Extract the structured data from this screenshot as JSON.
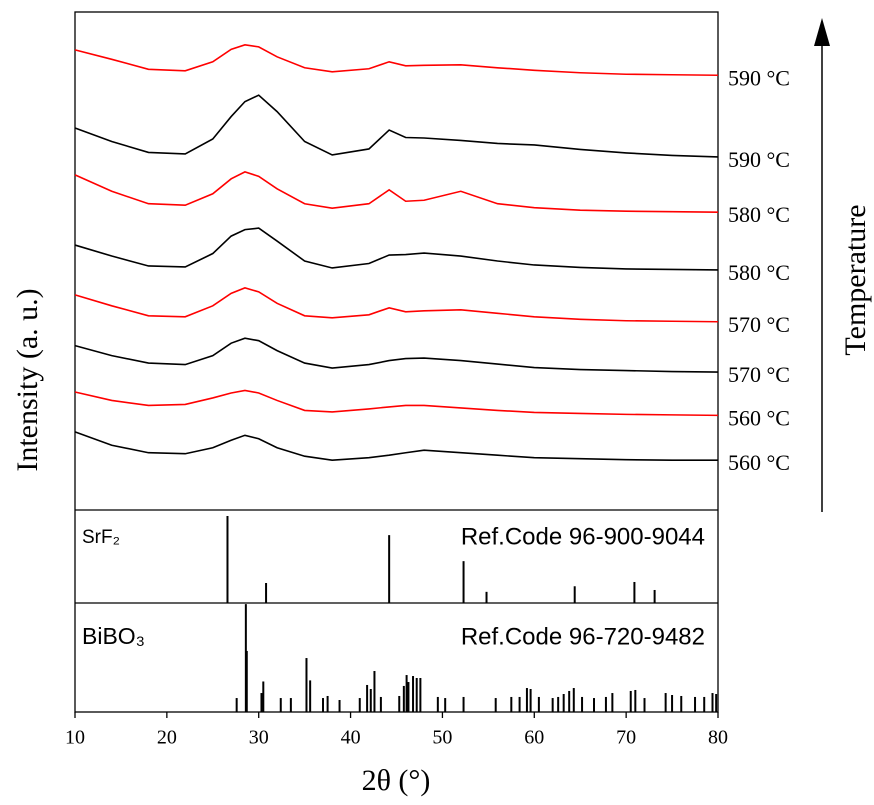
{
  "chart_data": [
    {
      "type": "line",
      "y_label": "Intensity (a. u.)",
      "annotation": "Temperature",
      "xlim": [
        10,
        80
      ],
      "ylim": [
        0,
        100
      ],
      "x": [
        10,
        14,
        18,
        22,
        25,
        27,
        28.5,
        30,
        32,
        35,
        38,
        42,
        44.2,
        46,
        48,
        52,
        56,
        60,
        65,
        70,
        75,
        80
      ],
      "series": [
        {
          "name": "560 °C",
          "color": "#000000",
          "values": [
            15.7,
            13,
            11.5,
            11.3,
            12.5,
            14,
            15,
            14.3,
            12.5,
            10.8,
            10,
            10.5,
            11,
            11.5,
            12,
            11.5,
            11,
            10.5,
            10.3,
            10.1,
            10,
            10
          ]
        },
        {
          "name": "560 °C",
          "color": "#ff0000",
          "values": [
            23.7,
            22,
            21,
            21.2,
            22.5,
            23.5,
            24,
            23.5,
            22,
            20,
            19.7,
            20.3,
            20.7,
            21,
            21,
            20.5,
            20,
            19.6,
            19.4,
            19.2,
            19.1,
            19
          ]
        },
        {
          "name": "570 °C",
          "color": "#000000",
          "values": [
            33,
            31,
            29.5,
            29.2,
            31,
            33.5,
            34.5,
            34,
            32,
            29.5,
            28.5,
            29.2,
            30,
            30.4,
            30.5,
            30,
            29.3,
            28.6,
            28.2,
            28,
            27.8,
            27.7
          ]
        },
        {
          "name": "570 °C",
          "color": "#ff0000",
          "values": [
            43.2,
            41,
            39,
            38.8,
            41,
            43.5,
            44.6,
            43.8,
            41.5,
            39,
            38.6,
            39.2,
            40.6,
            39.8,
            40,
            40.2,
            39.5,
            38.8,
            38.3,
            38,
            37.9,
            37.8
          ]
        },
        {
          "name": "580 °C",
          "color": "#000000",
          "values": [
            53.2,
            51,
            49,
            48.8,
            51.5,
            55,
            56.3,
            56.6,
            54,
            50,
            48.6,
            49.5,
            51.2,
            51.3,
            51.6,
            51,
            50,
            49.2,
            48.7,
            48.4,
            48.3,
            48.2
          ]
        },
        {
          "name": "580 °C",
          "color": "#ff0000",
          "values": [
            67.3,
            64,
            61.5,
            61.2,
            63.5,
            66.5,
            67.9,
            67,
            64.5,
            61.5,
            60.6,
            61.5,
            64.3,
            62,
            62.2,
            64,
            61.5,
            60.7,
            60.2,
            60,
            59.9,
            59.8
          ]
        },
        {
          "name": "590 °C",
          "color": "#000000",
          "values": [
            76.7,
            74,
            71.8,
            71.5,
            74.5,
            79,
            82,
            83.3,
            80,
            74,
            71.3,
            72.5,
            76.3,
            74.8,
            74.7,
            74.2,
            73.6,
            73.3,
            72.4,
            71.7,
            71.2,
            70.9
          ]
        },
        {
          "name": "590 °C",
          "color": "#ff0000",
          "values": [
            92.4,
            90.5,
            88.5,
            88.2,
            90,
            92.5,
            93.4,
            93,
            91,
            88.8,
            88,
            88.6,
            90,
            89.2,
            89.3,
            89.4,
            88.8,
            88.3,
            87.8,
            87.5,
            87.4,
            87.3
          ]
        }
      ]
    },
    {
      "type": "stem",
      "label": "SrF₂",
      "ref_code": "Ref.Code 96-900-9044",
      "color": "#000000",
      "xlim": [
        10,
        80
      ],
      "ylim": [
        0,
        100
      ],
      "x": [
        26.6,
        30.8,
        44.2,
        52.3,
        54.8,
        64.4,
        70.9,
        73.1
      ],
      "values": [
        93.5,
        21.5,
        73,
        45,
        12,
        18,
        22.6,
        14
      ]
    },
    {
      "type": "stem",
      "label": "BiBO₃",
      "ref_code": "Ref.Code 96-720-9482",
      "color": "#000000",
      "x_label": "2θ (°)",
      "xlim": [
        10,
        80
      ],
      "ylim": [
        0,
        100
      ],
      "xticks": [
        10,
        20,
        30,
        40,
        50,
        60,
        70,
        80
      ],
      "x": [
        27.6,
        28.6,
        28.7,
        30.3,
        30.5,
        32.4,
        33.5,
        35.2,
        35.6,
        37,
        37.5,
        38.8,
        41,
        41.8,
        42.2,
        42.6,
        43.3,
        45.3,
        45.8,
        46.1,
        46.3,
        46.8,
        47.2,
        47.6,
        49.5,
        50.3,
        52.3,
        55.8,
        57.5,
        58.4,
        59.2,
        59.6,
        60.5,
        62,
        62.6,
        63.2,
        63.8,
        64.3,
        65.2,
        66.5,
        67.8,
        68.5,
        70.5,
        71,
        72,
        74.3,
        75,
        76,
        77.5,
        78.5,
        79.4,
        79.8
      ],
      "values": [
        12.8,
        99,
        56,
        17.4,
        28,
        12.8,
        12.8,
        49.5,
        29,
        12.8,
        14.7,
        11,
        12.8,
        24.8,
        21.1,
        37.6,
        13.8,
        14.7,
        23.9,
        33.9,
        27.5,
        33,
        31.2,
        31.2,
        13.8,
        12.8,
        13.8,
        12.8,
        13.8,
        13.8,
        22,
        21.1,
        13.8,
        12.8,
        13.8,
        16.5,
        19.3,
        22,
        13.8,
        12.8,
        13.8,
        17.4,
        19.3,
        20.2,
        12.8,
        17.4,
        15.6,
        14.7,
        13.8,
        13.8,
        17.4,
        16.5
      ]
    }
  ]
}
